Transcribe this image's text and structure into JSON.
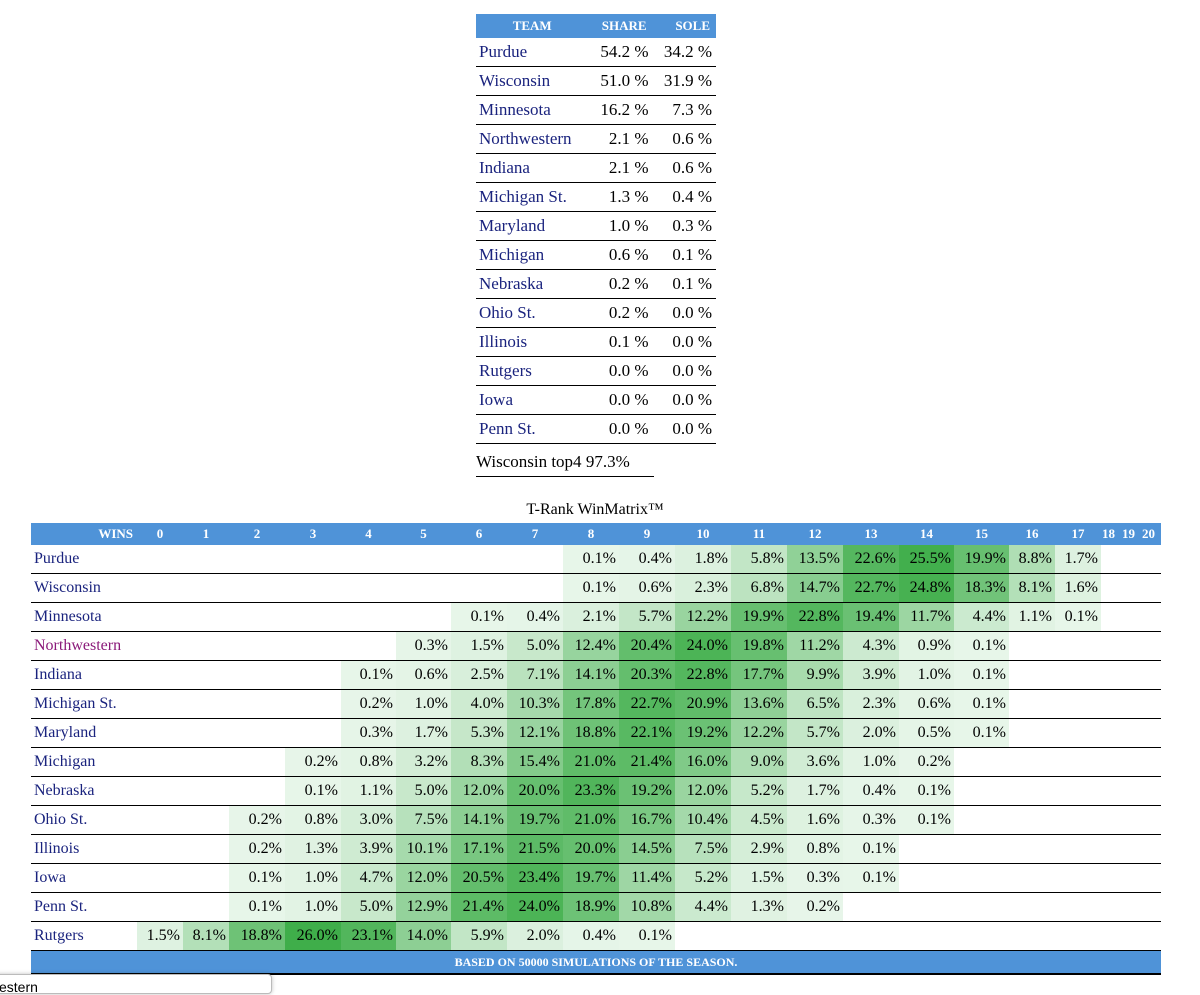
{
  "share_table": {
    "headers": [
      "TEAM",
      "SHARE",
      "SOLE"
    ],
    "rows": [
      {
        "team": "Purdue",
        "share": "54.2 %",
        "sole": "34.2 %"
      },
      {
        "team": "Wisconsin",
        "share": "51.0 %",
        "sole": "31.9 %"
      },
      {
        "team": "Minnesota",
        "share": "16.2 %",
        "sole": "7.3 %"
      },
      {
        "team": "Northwestern",
        "share": "2.1 %",
        "sole": "0.6 %"
      },
      {
        "team": "Indiana",
        "share": "2.1 %",
        "sole": "0.6 %"
      },
      {
        "team": "Michigan St.",
        "share": "1.3 %",
        "sole": "0.4 %"
      },
      {
        "team": "Maryland",
        "share": "1.0 %",
        "sole": "0.3 %"
      },
      {
        "team": "Michigan",
        "share": "0.6 %",
        "sole": "0.1 %"
      },
      {
        "team": "Nebraska",
        "share": "0.2 %",
        "sole": "0.1 %"
      },
      {
        "team": "Ohio St.",
        "share": "0.2 %",
        "sole": "0.0 %"
      },
      {
        "team": "Illinois",
        "share": "0.1 %",
        "sole": "0.0 %"
      },
      {
        "team": "Rutgers",
        "share": "0.0 %",
        "sole": "0.0 %"
      },
      {
        "team": "Iowa",
        "share": "0.0 %",
        "sole": "0.0 %"
      },
      {
        "team": "Penn St.",
        "share": "0.0 %",
        "sole": "0.0 %"
      }
    ],
    "top4_label": "Wisconsin top4",
    "top4_value": "97.3%"
  },
  "win_matrix": {
    "title": "T-Rank WinMatrix™",
    "wins_header": "WINS",
    "columns": [
      "0",
      "1",
      "2",
      "3",
      "4",
      "5",
      "6",
      "7",
      "8",
      "9",
      "10",
      "11",
      "12",
      "13",
      "14",
      "15",
      "16",
      "17",
      "18",
      "19",
      "20"
    ],
    "footer": "BASED ON 50000 SIMULATIONS OF THE SEASON.",
    "rows": [
      {
        "team": "Purdue",
        "visited": false,
        "cells": [
          "",
          "",
          "",
          "",
          "",
          "",
          "",
          "",
          "0.1%",
          "0.4%",
          "1.8%",
          "5.8%",
          "13.5%",
          "22.6%",
          "25.5%",
          "19.9%",
          "8.8%",
          "1.7%",
          "",
          "",
          ""
        ]
      },
      {
        "team": "Wisconsin",
        "visited": false,
        "cells": [
          "",
          "",
          "",
          "",
          "",
          "",
          "",
          "",
          "0.1%",
          "0.6%",
          "2.3%",
          "6.8%",
          "14.7%",
          "22.7%",
          "24.8%",
          "18.3%",
          "8.1%",
          "1.6%",
          "",
          "",
          ""
        ]
      },
      {
        "team": "Minnesota",
        "visited": false,
        "cells": [
          "",
          "",
          "",
          "",
          "",
          "",
          "0.1%",
          "0.4%",
          "2.1%",
          "5.7%",
          "12.2%",
          "19.9%",
          "22.8%",
          "19.4%",
          "11.7%",
          "4.4%",
          "1.1%",
          "0.1%",
          "",
          "",
          ""
        ]
      },
      {
        "team": "Northwestern",
        "visited": true,
        "cells": [
          "",
          "",
          "",
          "",
          "",
          "0.3%",
          "1.5%",
          "5.0%",
          "12.4%",
          "20.4%",
          "24.0%",
          "19.8%",
          "11.2%",
          "4.3%",
          "0.9%",
          "0.1%",
          "",
          "",
          "",
          "",
          ""
        ]
      },
      {
        "team": "Indiana",
        "visited": false,
        "cells": [
          "",
          "",
          "",
          "",
          "0.1%",
          "0.6%",
          "2.5%",
          "7.1%",
          "14.1%",
          "20.3%",
          "22.8%",
          "17.7%",
          "9.9%",
          "3.9%",
          "1.0%",
          "0.1%",
          "",
          "",
          "",
          "",
          ""
        ]
      },
      {
        "team": "Michigan St.",
        "visited": false,
        "cells": [
          "",
          "",
          "",
          "",
          "0.2%",
          "1.0%",
          "4.0%",
          "10.3%",
          "17.8%",
          "22.7%",
          "20.9%",
          "13.6%",
          "6.5%",
          "2.3%",
          "0.6%",
          "0.1%",
          "",
          "",
          "",
          "",
          ""
        ]
      },
      {
        "team": "Maryland",
        "visited": false,
        "cells": [
          "",
          "",
          "",
          "",
          "0.3%",
          "1.7%",
          "5.3%",
          "12.1%",
          "18.8%",
          "22.1%",
          "19.2%",
          "12.2%",
          "5.7%",
          "2.0%",
          "0.5%",
          "0.1%",
          "",
          "",
          "",
          "",
          ""
        ]
      },
      {
        "team": "Michigan",
        "visited": false,
        "cells": [
          "",
          "",
          "",
          "0.2%",
          "0.8%",
          "3.2%",
          "8.3%",
          "15.4%",
          "21.0%",
          "21.4%",
          "16.0%",
          "9.0%",
          "3.6%",
          "1.0%",
          "0.2%",
          "",
          "",
          "",
          "",
          "",
          ""
        ]
      },
      {
        "team": "Nebraska",
        "visited": false,
        "cells": [
          "",
          "",
          "",
          "0.1%",
          "1.1%",
          "5.0%",
          "12.0%",
          "20.0%",
          "23.3%",
          "19.2%",
          "12.0%",
          "5.2%",
          "1.7%",
          "0.4%",
          "0.1%",
          "",
          "",
          "",
          "",
          "",
          ""
        ]
      },
      {
        "team": "Ohio St.",
        "visited": false,
        "cells": [
          "",
          "",
          "0.2%",
          "0.8%",
          "3.0%",
          "7.5%",
          "14.1%",
          "19.7%",
          "21.0%",
          "16.7%",
          "10.4%",
          "4.5%",
          "1.6%",
          "0.3%",
          "0.1%",
          "",
          "",
          "",
          "",
          "",
          ""
        ]
      },
      {
        "team": "Illinois",
        "visited": false,
        "cells": [
          "",
          "",
          "0.2%",
          "1.3%",
          "3.9%",
          "10.1%",
          "17.1%",
          "21.5%",
          "20.0%",
          "14.5%",
          "7.5%",
          "2.9%",
          "0.8%",
          "0.1%",
          "",
          "",
          "",
          "",
          "",
          "",
          ""
        ]
      },
      {
        "team": "Iowa",
        "visited": false,
        "cells": [
          "",
          "",
          "0.1%",
          "1.0%",
          "4.7%",
          "12.0%",
          "20.5%",
          "23.4%",
          "19.7%",
          "11.4%",
          "5.2%",
          "1.5%",
          "0.3%",
          "0.1%",
          "",
          "",
          "",
          "",
          "",
          "",
          ""
        ]
      },
      {
        "team": "Penn St.",
        "visited": false,
        "cells": [
          "",
          "",
          "0.1%",
          "1.0%",
          "5.0%",
          "12.9%",
          "21.4%",
          "24.0%",
          "18.9%",
          "10.8%",
          "4.4%",
          "1.3%",
          "0.2%",
          "",
          "",
          "",
          "",
          "",
          "",
          "",
          ""
        ]
      },
      {
        "team": "Rutgers",
        "visited": false,
        "cells": [
          "1.5%",
          "8.1%",
          "18.8%",
          "26.0%",
          "23.1%",
          "14.0%",
          "5.9%",
          "2.0%",
          "0.4%",
          "0.1%",
          "",
          "",
          "",
          "",
          "",
          "",
          "",
          "",
          "",
          "",
          ""
        ]
      }
    ]
  },
  "bottom_popup_text": "estern",
  "colors": {
    "header_blue": "#4f93d8",
    "team_link": "#1a237e",
    "visited_link": "#8b1a7a",
    "heat_max": "#3fae4a"
  }
}
